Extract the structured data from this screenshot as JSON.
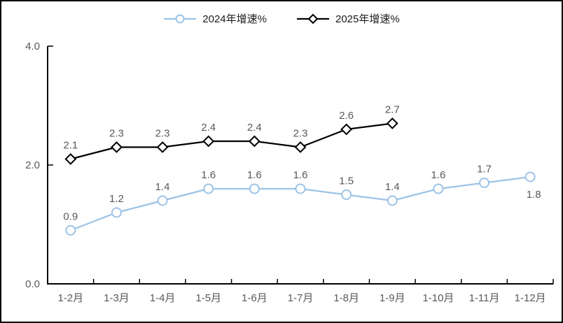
{
  "chart_data": {
    "type": "line",
    "title": "",
    "xlabel": "",
    "ylabel": "",
    "categories": [
      "1-2月",
      "1-3月",
      "1-4月",
      "1-5月",
      "1-6月",
      "1-7月",
      "1-8月",
      "1-9月",
      "1-10月",
      "1-11月",
      "1-12月"
    ],
    "series": [
      {
        "name": "2024年增速%",
        "values": [
          0.9,
          1.2,
          1.4,
          1.6,
          1.6,
          1.6,
          1.5,
          1.4,
          1.6,
          1.7,
          1.8
        ],
        "color": "#9DC3E6",
        "marker": "circle",
        "labels_below": [
          10
        ]
      },
      {
        "name": "2025年增速%",
        "values": [
          2.1,
          2.3,
          2.3,
          2.4,
          2.4,
          2.3,
          2.6,
          2.7
        ],
        "color": "#000000",
        "marker": "diamond",
        "labels_below": []
      }
    ],
    "ylim": [
      0.0,
      4.0
    ],
    "yticks": [
      "0.0",
      "2.0",
      "4.0"
    ],
    "grid": false,
    "legend_position": "top",
    "axis_color": "#000000",
    "tick_label_color": "#595959",
    "label_color": "#595959"
  }
}
